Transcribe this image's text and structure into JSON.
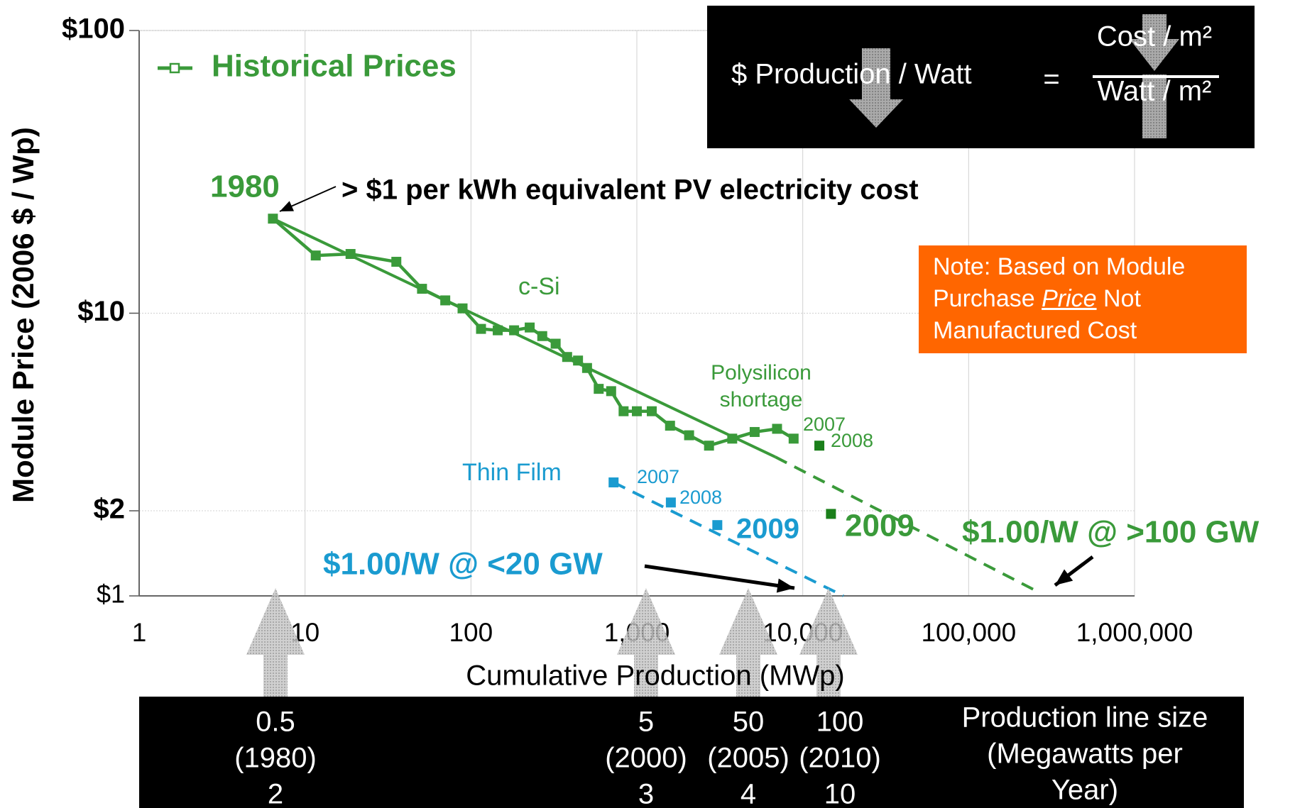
{
  "chart_data": {
    "type": "line",
    "ylabel": "Module Price (2006 $ / Wp)",
    "xlabel": "Cumulative Production (MWp)",
    "xscale": "log",
    "yscale": "log",
    "grid": true,
    "legend": "upper left",
    "xlim": [
      1,
      1000000
    ],
    "xticks": [
      1,
      10,
      100,
      {
        "value": 1000,
        "label": "1,000"
      },
      {
        "value": 10000,
        "label": "10,000"
      },
      {
        "value": 100000,
        "label": "100,000"
      },
      {
        "value": 1000000,
        "label": "1,000,000"
      }
    ],
    "ylim": [
      1,
      100
    ],
    "yticks": [
      {
        "value": 1,
        "label": "$1"
      },
      {
        "value": 2,
        "label": "$2"
      },
      {
        "value": 10,
        "label": "$10"
      },
      {
        "value": 100,
        "label": "$100"
      }
    ],
    "series": [
      {
        "name": "Historical Prices",
        "color": "#3a9a3a",
        "line_style": "solid",
        "marker": "square",
        "x": [
          6.4,
          11.6,
          18.8,
          35.5,
          50.7,
          70,
          89,
          115,
          145,
          182,
          226,
          269,
          324,
          380,
          442,
          501,
          589,
          700,
          832,
          1000,
          1230,
          1585,
          2065,
          2723,
          3758,
          5130,
          7000,
          8810
        ],
        "values": [
          21.6,
          16.0,
          16.2,
          15.2,
          12.2,
          11.1,
          10.4,
          8.8,
          8.7,
          8.7,
          8.9,
          8.3,
          7.8,
          7.0,
          6.8,
          6.4,
          5.4,
          5.3,
          4.5,
          4.5,
          4.5,
          4.0,
          3.7,
          3.4,
          3.6,
          3.8,
          3.9,
          3.6
        ]
      },
      {
        "color": "#3a9a3a",
        "line_style": "solid",
        "x": [
          6.4,
          6840
        ],
        "values": [
          21.6,
          3.1
        ]
      },
      {
        "color": "#3a9a3a",
        "line_style": "dashed",
        "x": [
          6840,
          257000
        ],
        "values": [
          3.1,
          1.04
        ]
      },
      {
        "color": "#1a7f1a",
        "line_style": "none",
        "marker": "square",
        "x": [
          12590,
          14790
        ],
        "values": [
          3.4,
          1.95
        ]
      },
      {
        "color": "#1a9bd0",
        "line_style": "none",
        "marker": "square",
        "x": [
          724,
          1603,
          3055
        ],
        "values": [
          2.52,
          2.14,
          1.78
        ]
      },
      {
        "color": "#1a9bd0",
        "line_style": "dashed",
        "x": [
          724,
          17580
        ],
        "values": [
          2.52,
          1.0
        ]
      }
    ],
    "annotations": [
      "1980",
      "> $1 per kWh equivalent PV electricity cost",
      "c-Si",
      "Polysilicon",
      "shortage",
      "2007",
      "2008",
      "2009",
      "$1.00/W @ >100 GW",
      "Thin Film",
      "2007",
      "2008",
      "2009",
      "$1.00/W @ <20 GW"
    ]
  },
  "equation": {
    "left": "$ Production / Watt",
    "equals": "=",
    "numerator": "Cost / m²",
    "denominator": "Watt / m²"
  },
  "note": {
    "line1": "Note: Based on Module",
    "line2": [
      "Purchase",
      "Price",
      "Not"
    ],
    "line3": "Manufactured Cost"
  },
  "production_table": {
    "columns": [
      [
        "0.5",
        "(1980)",
        "2"
      ],
      [
        "5",
        "(2000)",
        "3"
      ],
      [
        "50",
        "(2005)",
        "4"
      ],
      [
        "100",
        "(2010)",
        "10"
      ]
    ],
    "header": [
      "Production line size",
      "(Megawatts per",
      "Year)"
    ]
  }
}
